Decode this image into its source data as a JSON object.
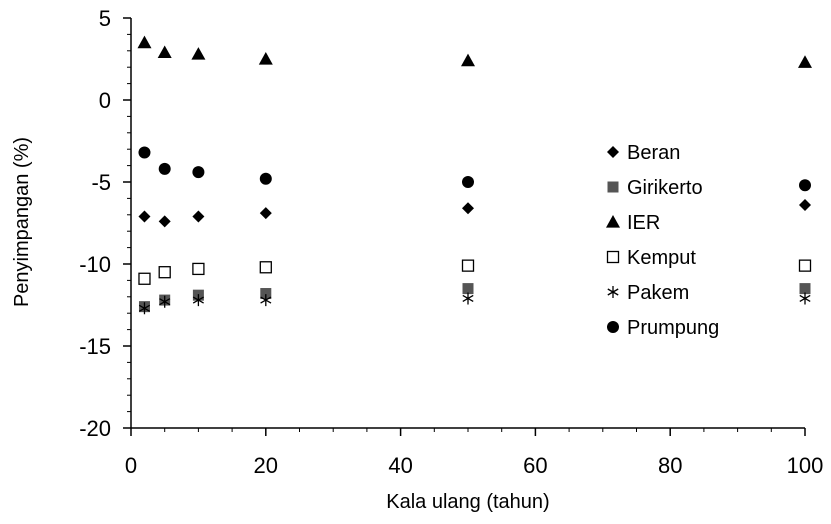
{
  "chart_data": {
    "type": "scatter",
    "xlabel": "Kala ulang (tahun)",
    "ylabel": "Penyimpangan (%)",
    "xlim": [
      0,
      100
    ],
    "ylim": [
      -20,
      5
    ],
    "x_ticks": [
      0,
      20,
      40,
      60,
      80,
      100
    ],
    "y_ticks": [
      5,
      0,
      -5,
      -10,
      -15,
      -20
    ],
    "legend_position": "right",
    "grid": false,
    "x": [
      2,
      5,
      10,
      20,
      50,
      100
    ],
    "series": [
      {
        "name": "Beran",
        "marker": "diamond",
        "color": "#000000",
        "values": [
          -7.1,
          -7.4,
          -7.1,
          -6.9,
          -6.6,
          -6.4
        ]
      },
      {
        "name": "Girikerto",
        "marker": "square",
        "color": "#555555",
        "values": [
          -12.6,
          -12.2,
          -11.9,
          -11.8,
          -11.5,
          -11.5
        ]
      },
      {
        "name": "IER",
        "marker": "triangle",
        "color": "#000000",
        "values": [
          3.5,
          2.9,
          2.8,
          2.5,
          2.4,
          2.3
        ]
      },
      {
        "name": "Kemput",
        "marker": "open-square",
        "color": "#000000",
        "values": [
          -10.9,
          -10.5,
          -10.3,
          -10.2,
          -10.1,
          -10.1
        ]
      },
      {
        "name": "Pakem",
        "marker": "asterisk",
        "color": "#000000",
        "values": [
          -12.7,
          -12.3,
          -12.2,
          -12.2,
          -12.1,
          -12.1
        ]
      },
      {
        "name": "Prumpung",
        "marker": "circle",
        "color": "#000000",
        "values": [
          -3.2,
          -4.2,
          -4.4,
          -4.8,
          -5.0,
          -5.2
        ]
      }
    ]
  }
}
